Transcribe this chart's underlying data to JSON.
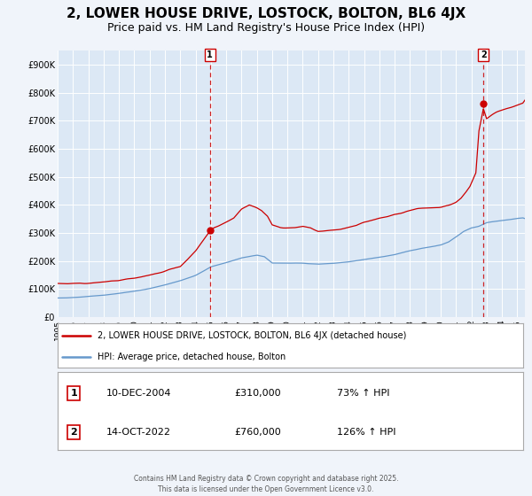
{
  "title": "2, LOWER HOUSE DRIVE, LOSTOCK, BOLTON, BL6 4JX",
  "subtitle": "Price paid vs. HM Land Registry's House Price Index (HPI)",
  "title_fontsize": 11,
  "subtitle_fontsize": 9,
  "background_color": "#f0f4fa",
  "plot_bg_color": "#dce8f5",
  "grid_color": "#ffffff",
  "ylim": [
    0,
    950000
  ],
  "yticks": [
    0,
    100000,
    200000,
    300000,
    400000,
    500000,
    600000,
    700000,
    800000,
    900000
  ],
  "ytick_labels": [
    "£0",
    "£100K",
    "£200K",
    "£300K",
    "£400K",
    "£500K",
    "£600K",
    "£700K",
    "£800K",
    "£900K"
  ],
  "xlim_start": 1995.0,
  "xlim_end": 2025.5,
  "sale1_date": 2004.94,
  "sale1_price": 310000,
  "sale2_date": 2022.79,
  "sale2_price": 760000,
  "sale_color": "#cc0000",
  "line1_color": "#cc0000",
  "line2_color": "#6699cc",
  "legend_line1": "2, LOWER HOUSE DRIVE, LOSTOCK, BOLTON, BL6 4JX (detached house)",
  "legend_line2": "HPI: Average price, detached house, Bolton",
  "footer": "Contains HM Land Registry data © Crown copyright and database right 2025.\nThis data is licensed under the Open Government Licence v3.0.",
  "table_rows": [
    [
      "1",
      "10-DEC-2004",
      "£310,000",
      "73% ↑ HPI"
    ],
    [
      "2",
      "14-OCT-2022",
      "£760,000",
      "126% ↑ HPI"
    ]
  ],
  "hpi_knots_t": [
    1995,
    1996,
    1997,
    1998,
    1999,
    2000,
    2001,
    2002,
    2003,
    2004,
    2004.5,
    2005,
    2006,
    2007,
    2008,
    2008.5,
    2009,
    2010,
    2011,
    2012,
    2013,
    2014,
    2015,
    2016,
    2017,
    2018,
    2019,
    2020,
    2020.5,
    2021,
    2021.5,
    2022,
    2022.5,
    2023,
    2023.5,
    2024,
    2024.5,
    2025.3
  ],
  "hpi_knots_v": [
    68000,
    70000,
    74000,
    78000,
    84000,
    92000,
    102000,
    115000,
    130000,
    148000,
    162000,
    178000,
    192000,
    208000,
    218000,
    212000,
    190000,
    188000,
    188000,
    184000,
    186000,
    192000,
    200000,
    208000,
    218000,
    232000,
    242000,
    252000,
    262000,
    280000,
    300000,
    312000,
    318000,
    330000,
    335000,
    338000,
    342000,
    348000
  ],
  "prop_knots_t": [
    1995,
    1996,
    1997,
    1998,
    1999,
    2000,
    2001,
    2002,
    2003,
    2004,
    2004.5,
    2004.94,
    2005.2,
    2005.8,
    2006.5,
    2007,
    2007.5,
    2008,
    2008.3,
    2008.7,
    2009,
    2009.5,
    2010,
    2010.5,
    2011,
    2011.5,
    2012,
    2012.5,
    2013,
    2013.5,
    2014,
    2014.5,
    2015,
    2015.5,
    2016,
    2016.5,
    2017,
    2017.5,
    2018,
    2018.5,
    2019,
    2019.5,
    2020,
    2020.5,
    2021,
    2021.3,
    2021.6,
    2021.9,
    2022.1,
    2022.3,
    2022.5,
    2022.79,
    2023.0,
    2023.3,
    2023.6,
    2024.0,
    2024.3,
    2024.6,
    2025.0,
    2025.3
  ],
  "prop_knots_v": [
    120000,
    122000,
    125000,
    128000,
    132000,
    140000,
    150000,
    162000,
    180000,
    240000,
    278000,
    310000,
    322000,
    338000,
    358000,
    390000,
    408000,
    398000,
    390000,
    370000,
    340000,
    332000,
    330000,
    332000,
    336000,
    330000,
    318000,
    320000,
    322000,
    328000,
    335000,
    342000,
    352000,
    358000,
    365000,
    370000,
    378000,
    384000,
    392000,
    398000,
    402000,
    405000,
    408000,
    415000,
    425000,
    438000,
    458000,
    480000,
    505000,
    530000,
    680000,
    760000,
    725000,
    738000,
    748000,
    758000,
    766000,
    772000,
    780000,
    785000
  ]
}
